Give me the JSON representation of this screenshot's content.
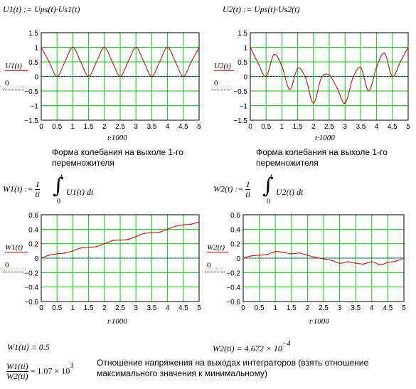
{
  "colors": {
    "grid": "#00d000",
    "trace": "#cc0000",
    "zero": "#0000aa",
    "frame": "#000000"
  },
  "formulas": {
    "u1_def": "U1(t) := Ups(t)·Us1(t)",
    "u2_def": "U2(t) := Ups(t)·Us2(t)",
    "w1_lhs": "W1(t) :=",
    "w2_lhs": "W2(t) :=",
    "frac_num": "1",
    "frac_den": "ti",
    "int_upper": "t",
    "int_lower": "0",
    "w1_integrand": "U1(t) dt",
    "w2_integrand": "U2(t) dt",
    "w1_result": "W1(ti) = 0.5",
    "w2_result_base": "W2(ti) = 4.672 × 10",
    "w2_result_exp": "−4",
    "ratio_num": "W1(ti)",
    "ratio_den": "W2(ti)",
    "ratio_value": "= 1.07 × 10",
    "ratio_exp": "3"
  },
  "captions": {
    "mult1": [
      "Форма колебания на выхоле 1-го",
      "перемножителя"
    ],
    "mult2": [
      "Форма колебания на выхоле 1-го",
      "перемножителя"
    ],
    "ratio_note": [
      "Отношение напряжения на выходах интеграторов (взять отношение",
      "максимального значения к минимальному)"
    ]
  },
  "chart_data": [
    {
      "id": "u1",
      "type": "line",
      "series_label": "U1(t)",
      "zero_label": "0",
      "xlabel": "t·1000",
      "xlim": [
        0,
        5
      ],
      "ylim": [
        -1.5,
        1.5
      ],
      "xticks": [
        "0",
        "0.5",
        "1",
        "1.5",
        "2",
        "2.5",
        "3",
        "3.5",
        "4",
        "4.5",
        "5"
      ],
      "yticks": [
        "1.5",
        "1",
        "0.5",
        "0",
        "−0.5",
        "−1",
        "−1.5"
      ],
      "x": [
        0,
        0.25,
        0.5,
        0.75,
        1,
        1.25,
        1.5,
        1.75,
        2,
        2.25,
        2.5,
        2.75,
        3,
        3.25,
        3.5,
        3.75,
        4,
        4.25,
        4.5,
        4.75,
        5
      ],
      "y": [
        1,
        0.5,
        0,
        0.5,
        1,
        0.5,
        0,
        0.5,
        1,
        0.5,
        0,
        0.5,
        1,
        0.5,
        0,
        0.5,
        1,
        0.5,
        0,
        0.5,
        1
      ]
    },
    {
      "id": "u2",
      "type": "line",
      "series_label": "U2(t)",
      "zero_label": "0",
      "xlabel": "t·1000",
      "xlim": [
        0,
        5
      ],
      "ylim": [
        -1.5,
        1.5
      ],
      "xticks": [
        "0",
        "0.5",
        "1",
        "1.5",
        "2",
        "2.5",
        "3",
        "3.5",
        "4",
        "4.5",
        "5"
      ],
      "yticks": [
        "1.5",
        "1",
        "0.5",
        "0",
        "−0.5",
        "−1",
        "−1.5"
      ],
      "x": [
        0,
        0.25,
        0.5,
        0.75,
        1,
        1.25,
        1.5,
        1.75,
        2,
        2.25,
        2.5,
        2.75,
        3,
        3.25,
        3.5,
        3.75,
        4,
        4.25,
        4.5,
        4.75,
        5
      ],
      "y": [
        1,
        0.45,
        0,
        0.75,
        0.35,
        -0.45,
        0.28,
        -0.05,
        -0.92,
        -0.05,
        0.05,
        -0.4,
        -0.92,
        -0.05,
        0.3,
        -0.5,
        0.32,
        0.8,
        0,
        0.5,
        1
      ]
    },
    {
      "id": "w1",
      "type": "line",
      "series_label": "W1(t)",
      "zero_label": "0",
      "xlabel": "t·1000",
      "xlim": [
        0,
        5
      ],
      "ylim": [
        -0.6,
        0.6
      ],
      "xticks": [
        "0",
        "0.5",
        "1",
        "1.5",
        "2",
        "2.5",
        "3",
        "3.5",
        "4",
        "4.5",
        "5"
      ],
      "yticks": [
        "0.6",
        "0.4",
        "0.2",
        "0",
        "−0.2",
        "−0.4",
        "−0.6"
      ],
      "x": [
        0,
        0.25,
        0.5,
        0.75,
        1,
        1.25,
        1.5,
        1.75,
        2,
        2.25,
        2.5,
        2.75,
        3,
        3.25,
        3.5,
        3.75,
        4,
        4.25,
        4.5,
        4.75,
        5
      ],
      "y": [
        0,
        0.04,
        0.06,
        0.07,
        0.1,
        0.14,
        0.15,
        0.16,
        0.2,
        0.24,
        0.25,
        0.26,
        0.3,
        0.34,
        0.35,
        0.36,
        0.4,
        0.44,
        0.46,
        0.47,
        0.5
      ]
    },
    {
      "id": "w2",
      "type": "line",
      "series_label": "W2(t)",
      "zero_label": "0",
      "xlabel": "t·1000",
      "xlim": [
        0,
        5
      ],
      "ylim": [
        -0.6,
        0.6
      ],
      "xticks": [
        "0",
        "0.5",
        "1",
        "1.5",
        "2",
        "2.5",
        "3",
        "3.5",
        "4",
        "4.5",
        "5"
      ],
      "yticks": [
        "0.6",
        "0.4",
        "0.2",
        "0",
        "−0.2",
        "−0.4",
        "−0.6"
      ],
      "x": [
        0,
        0.25,
        0.5,
        0.75,
        1,
        1.25,
        1.5,
        1.75,
        2,
        2.25,
        2.5,
        2.75,
        3,
        3.25,
        3.5,
        3.75,
        4,
        4.25,
        4.5,
        4.75,
        5
      ],
      "y": [
        0,
        0.03,
        0.04,
        0.05,
        0.09,
        0.08,
        0.06,
        0.07,
        0.04,
        0.01,
        -0.01,
        -0.03,
        -0.07,
        -0.05,
        -0.07,
        -0.08,
        -0.05,
        -0.09,
        -0.06,
        -0.04,
        0
      ]
    }
  ]
}
